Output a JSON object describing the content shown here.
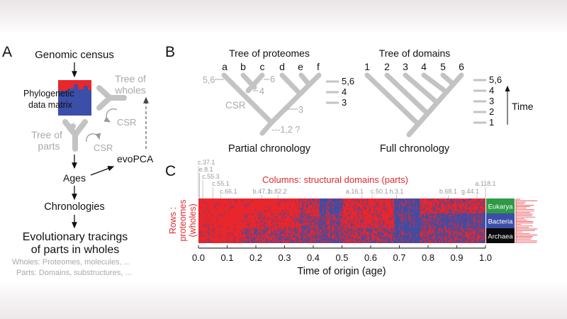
{
  "panel_a": {
    "label": "A",
    "genomic_census": "Genomic census",
    "matrix_line1": "Phylogenetic",
    "matrix_line2": "data matrix",
    "tree_wholes_1": "Tree of",
    "tree_wholes_2": "wholes",
    "tree_parts_1": "Tree of",
    "tree_parts_2": "parts",
    "csr": "CSR",
    "ages": "Ages",
    "evopca": "evoPCA",
    "chronologies": "Chronologies",
    "tracings_1": "Evolutionary tracings",
    "tracings_2": "of parts in wholes",
    "wholes_note": "Wholes:   Proteomes, molecules, ...",
    "parts_note": "Parts: Domains, substructures, ..."
  },
  "panel_b": {
    "label": "B",
    "tree1_title": "Tree of proteomes",
    "tree1_leaves": [
      "a",
      "b",
      "c",
      "d",
      "e",
      "f"
    ],
    "tree1_annotations": {
      "a": "5,6",
      "c": "6",
      "bc": "4",
      "csr": "CSR",
      "def": "3",
      "root": "---1,2 ?"
    },
    "tree1_scale": [
      "5,6",
      "4",
      "3"
    ],
    "tree1_caption": "Partial chronology",
    "tree2_title": "Tree of domains",
    "tree2_leaves": [
      "1",
      "2",
      "3",
      "4",
      "5",
      "6"
    ],
    "tree2_scale": [
      "5,6",
      "4",
      "3",
      "2",
      "1"
    ],
    "time_label": "Time",
    "tree2_caption": "Full chronology"
  },
  "panel_c": {
    "label": "C",
    "columns_label": "Columns: structural domains (parts)",
    "rows_label_1": "Rows :",
    "rows_label_2": "proteomes",
    "rows_label_3": "(wholes)",
    "x_axis_label": "Time of origin (age)",
    "x_ticks": [
      "0.0",
      "0.1",
      "0.2",
      "0.3",
      "0.4",
      "0.5",
      "0.6",
      "0.7",
      "0.8",
      "0.9",
      "1.0"
    ],
    "domain_markers": [
      {
        "name": "c.37.1",
        "age": 0.0
      },
      {
        "name": "e.8.1",
        "age": 0.004
      },
      {
        "name": "c.55.3",
        "age": 0.015
      },
      {
        "name": "c.55.1",
        "age": 0.05
      },
      {
        "name": "c.66.1",
        "age": 0.077
      },
      {
        "name": "b.47.1",
        "age": 0.22
      },
      {
        "name": "b.82.2",
        "age": 0.277
      },
      {
        "name": "a.16.1",
        "age": 0.57
      },
      {
        "name": "c.50.1",
        "age": 0.605
      },
      {
        "name": "h.3.1",
        "age": 0.69
      },
      {
        "name": "b.68.1",
        "age": 0.87
      },
      {
        "name": "g.44.1",
        "age": 0.97
      },
      {
        "name": "a.118.1",
        "age": 1.0
      }
    ],
    "superkingdoms": [
      {
        "name": "Eukarya",
        "color": "#2e9a47"
      },
      {
        "name": "Bacteria",
        "color": "#3b4ea8"
      },
      {
        "name": "Archaea",
        "color": "#0a0a0a"
      }
    ],
    "colors": {
      "present": "#3b4ea8",
      "absent": "#e8262b"
    }
  }
}
